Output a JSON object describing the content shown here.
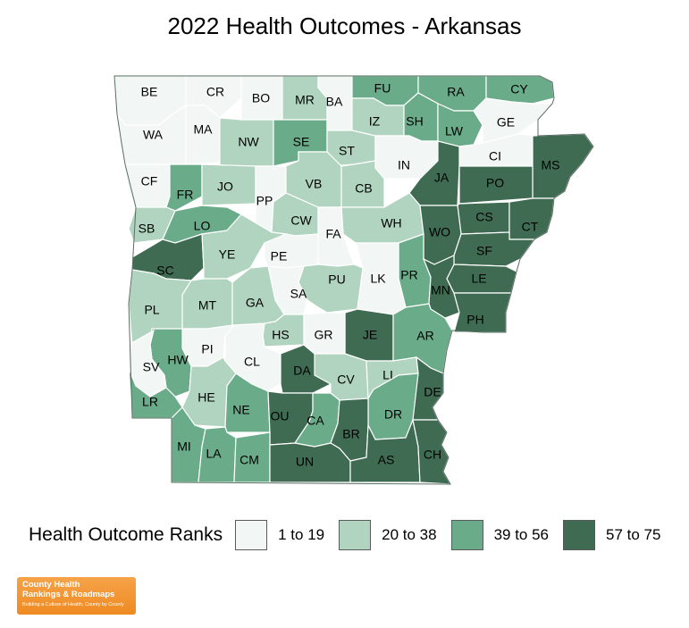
{
  "title": "2022 Health Outcomes - Arkansas",
  "legend": {
    "title": "Health Outcome Ranks",
    "items": [
      {
        "label": "1 to 19",
        "color": "#f2f6f4"
      },
      {
        "label": "20 to 38",
        "color": "#b0d4bf"
      },
      {
        "label": "39 to 56",
        "color": "#6aab8a"
      },
      {
        "label": "57 to 75",
        "color": "#3e6b52"
      }
    ]
  },
  "counties": [
    {
      "abbr": "BE",
      "bin": 0
    },
    {
      "abbr": "CR",
      "bin": 0
    },
    {
      "abbr": "BO",
      "bin": 0
    },
    {
      "abbr": "MR",
      "bin": 1
    },
    {
      "abbr": "BA",
      "bin": 0
    },
    {
      "abbr": "FU",
      "bin": 2
    },
    {
      "abbr": "RA",
      "bin": 2
    },
    {
      "abbr": "CY",
      "bin": 2
    },
    {
      "abbr": "WA",
      "bin": 0
    },
    {
      "abbr": "MA",
      "bin": 0
    },
    {
      "abbr": "NW",
      "bin": 1
    },
    {
      "abbr": "SE",
      "bin": 2
    },
    {
      "abbr": "IZ",
      "bin": 1
    },
    {
      "abbr": "SH",
      "bin": 2
    },
    {
      "abbr": "LW",
      "bin": 2
    },
    {
      "abbr": "GE",
      "bin": 0
    },
    {
      "abbr": "ST",
      "bin": 1
    },
    {
      "abbr": "IN",
      "bin": 0
    },
    {
      "abbr": "CI",
      "bin": 0
    },
    {
      "abbr": "MS",
      "bin": 3
    },
    {
      "abbr": "CF",
      "bin": 0
    },
    {
      "abbr": "FR",
      "bin": 2
    },
    {
      "abbr": "JO",
      "bin": 1
    },
    {
      "abbr": "PP",
      "bin": 0
    },
    {
      "abbr": "VB",
      "bin": 1
    },
    {
      "abbr": "CB",
      "bin": 1
    },
    {
      "abbr": "JA",
      "bin": 3
    },
    {
      "abbr": "PO",
      "bin": 3
    },
    {
      "abbr": "SB",
      "bin": 1
    },
    {
      "abbr": "LO",
      "bin": 2
    },
    {
      "abbr": "CW",
      "bin": 1
    },
    {
      "abbr": "WH",
      "bin": 1
    },
    {
      "abbr": "CS",
      "bin": 3
    },
    {
      "abbr": "CT",
      "bin": 3
    },
    {
      "abbr": "FA",
      "bin": 0
    },
    {
      "abbr": "WO",
      "bin": 3
    },
    {
      "abbr": "SC",
      "bin": 3
    },
    {
      "abbr": "YE",
      "bin": 1
    },
    {
      "abbr": "PE",
      "bin": 0
    },
    {
      "abbr": "SF",
      "bin": 3
    },
    {
      "abbr": "PR",
      "bin": 2
    },
    {
      "abbr": "LE",
      "bin": 3
    },
    {
      "abbr": "PU",
      "bin": 1
    },
    {
      "abbr": "LK",
      "bin": 0
    },
    {
      "abbr": "MN",
      "bin": 3
    },
    {
      "abbr": "SA",
      "bin": 0
    },
    {
      "abbr": "PL",
      "bin": 1
    },
    {
      "abbr": "MT",
      "bin": 1
    },
    {
      "abbr": "GA",
      "bin": 1
    },
    {
      "abbr": "PH",
      "bin": 3
    },
    {
      "abbr": "JE",
      "bin": 3
    },
    {
      "abbr": "AR",
      "bin": 2
    },
    {
      "abbr": "HS",
      "bin": 1
    },
    {
      "abbr": "GR",
      "bin": 0
    },
    {
      "abbr": "PI",
      "bin": 0
    },
    {
      "abbr": "HW",
      "bin": 2
    },
    {
      "abbr": "CL",
      "bin": 0
    },
    {
      "abbr": "DA",
      "bin": 3
    },
    {
      "abbr": "SV",
      "bin": 0
    },
    {
      "abbr": "CV",
      "bin": 1
    },
    {
      "abbr": "LI",
      "bin": 1
    },
    {
      "abbr": "DE",
      "bin": 3
    },
    {
      "abbr": "HE",
      "bin": 1
    },
    {
      "abbr": "LR",
      "bin": 2
    },
    {
      "abbr": "NE",
      "bin": 2
    },
    {
      "abbr": "OU",
      "bin": 3
    },
    {
      "abbr": "CA",
      "bin": 2
    },
    {
      "abbr": "DR",
      "bin": 2
    },
    {
      "abbr": "BR",
      "bin": 3
    },
    {
      "abbr": "MI",
      "bin": 2
    },
    {
      "abbr": "LA",
      "bin": 2
    },
    {
      "abbr": "CM",
      "bin": 2
    },
    {
      "abbr": "UN",
      "bin": 3
    },
    {
      "abbr": "AS",
      "bin": 3
    },
    {
      "abbr": "CH",
      "bin": 3
    }
  ],
  "logo": {
    "line1": "County Health",
    "line2": "Rankings & Roadmaps",
    "tagline": "Building a Culture of Health, County by County"
  }
}
